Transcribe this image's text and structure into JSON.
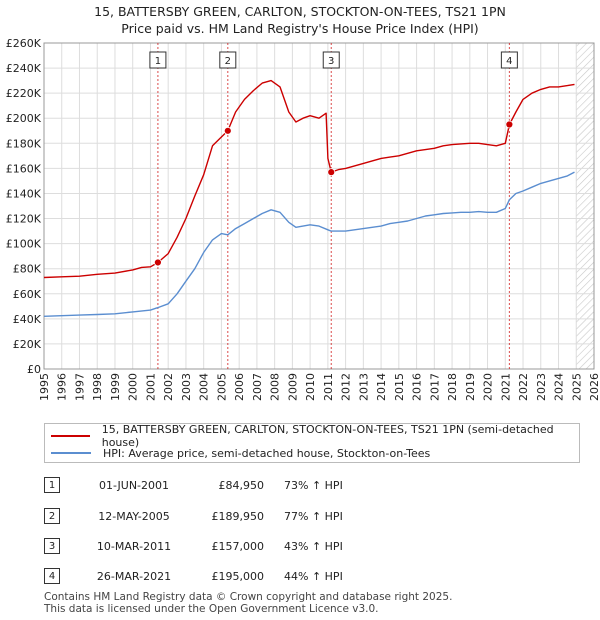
{
  "chart_data": {
    "type": "line",
    "title": "15, BATTERSBY GREEN, CARLTON, STOCKTON-ON-TEES, TS21 1PN",
    "subtitle": "Price paid vs. HM Land Registry's House Price Index (HPI)",
    "xlabel": "",
    "ylabel": "",
    "xlim": [
      1995,
      2026
    ],
    "ylim": [
      0,
      260000
    ],
    "x_ticks": [
      "1995",
      "1996",
      "1997",
      "1998",
      "1999",
      "2000",
      "2001",
      "2002",
      "2003",
      "2004",
      "2005",
      "2006",
      "2007",
      "2008",
      "2009",
      "2010",
      "2011",
      "2012",
      "2013",
      "2014",
      "2015",
      "2016",
      "2017",
      "2018",
      "2019",
      "2020",
      "2021",
      "2022",
      "2023",
      "2024",
      "2025",
      "2026"
    ],
    "y_ticks": [
      {
        "value": 0,
        "label": "£0"
      },
      {
        "value": 20000,
        "label": "£20K"
      },
      {
        "value": 40000,
        "label": "£40K"
      },
      {
        "value": 60000,
        "label": "£60K"
      },
      {
        "value": 80000,
        "label": "£80K"
      },
      {
        "value": 100000,
        "label": "£100K"
      },
      {
        "value": 120000,
        "label": "£120K"
      },
      {
        "value": 140000,
        "label": "£140K"
      },
      {
        "value": 160000,
        "label": "£160K"
      },
      {
        "value": 180000,
        "label": "£180K"
      },
      {
        "value": 200000,
        "label": "£200K"
      },
      {
        "value": 220000,
        "label": "£220K"
      },
      {
        "value": 240000,
        "label": "£240K"
      },
      {
        "value": 260000,
        "label": "£260K"
      }
    ],
    "forecast_start": 2025.0,
    "series": [
      {
        "name": "15, BATTERSBY GREEN, CARLTON, STOCKTON-ON-TEES, TS21 1PN (semi-detached house)",
        "color": "#cc0000",
        "x": [
          1995.0,
          1996.0,
          1997.0,
          1998.0,
          1999.0,
          2000.0,
          2000.5,
          2001.0,
          2001.42,
          2002.0,
          2002.5,
          2003.0,
          2003.5,
          2004.0,
          2004.5,
          2005.0,
          2005.36,
          2005.8,
          2006.3,
          2006.8,
          2007.3,
          2007.8,
          2008.3,
          2008.8,
          2009.2,
          2009.6,
          2010.0,
          2010.5,
          2010.9,
          2011.0,
          2011.19,
          2011.6,
          2012.0,
          2012.5,
          2013.0,
          2013.5,
          2014.0,
          2014.5,
          2015.0,
          2015.5,
          2016.0,
          2016.5,
          2017.0,
          2017.5,
          2018.0,
          2018.5,
          2019.0,
          2019.5,
          2020.0,
          2020.5,
          2021.0,
          2021.23,
          2021.6,
          2022.0,
          2022.5,
          2023.0,
          2023.5,
          2024.0,
          2024.5,
          2024.9
        ],
        "y": [
          73000,
          73500,
          74000,
          75500,
          76500,
          79000,
          81000,
          81500,
          84950,
          92000,
          105000,
          120000,
          138000,
          155000,
          178000,
          185000,
          189950,
          205000,
          215000,
          222000,
          228000,
          230000,
          225000,
          205000,
          197000,
          200000,
          202000,
          200000,
          204000,
          168000,
          157000,
          159000,
          160000,
          162000,
          164000,
          166000,
          168000,
          169000,
          170000,
          172000,
          174000,
          175000,
          176000,
          178000,
          179000,
          179500,
          180000,
          180000,
          179000,
          178000,
          180000,
          195000,
          205000,
          215000,
          220000,
          223000,
          225000,
          225000,
          226000,
          227000
        ]
      },
      {
        "name": "HPI: Average price, semi-detached house, Stockton-on-Tees",
        "color": "#5b8ed0",
        "x": [
          1995.0,
          1996.0,
          1997.0,
          1998.0,
          1999.0,
          2000.0,
          2001.0,
          2001.42,
          2002.0,
          2002.5,
          2003.0,
          2003.5,
          2004.0,
          2004.5,
          2005.0,
          2005.36,
          2005.8,
          2006.3,
          2006.8,
          2007.3,
          2007.8,
          2008.3,
          2008.8,
          2009.2,
          2009.6,
          2010.0,
          2010.5,
          2011.0,
          2011.19,
          2011.6,
          2012.0,
          2012.5,
          2013.0,
          2013.5,
          2014.0,
          2014.5,
          2015.0,
          2015.5,
          2016.0,
          2016.5,
          2017.0,
          2017.5,
          2018.0,
          2018.5,
          2019.0,
          2019.5,
          2020.0,
          2020.5,
          2021.0,
          2021.23,
          2021.6,
          2022.0,
          2022.5,
          2023.0,
          2023.5,
          2024.0,
          2024.5,
          2024.9
        ],
        "y": [
          42000,
          42500,
          43000,
          43500,
          44000,
          45500,
          47000,
          49000,
          52000,
          60000,
          70000,
          80000,
          93000,
          103000,
          108000,
          107000,
          112000,
          116000,
          120000,
          124000,
          127000,
          125000,
          117000,
          113000,
          114000,
          115000,
          114000,
          111000,
          110000,
          110000,
          110000,
          111000,
          112000,
          113000,
          114000,
          116000,
          117000,
          118000,
          120000,
          122000,
          123000,
          124000,
          124500,
          125000,
          125000,
          125500,
          125000,
          125000,
          128000,
          135000,
          140000,
          142000,
          145000,
          148000,
          150000,
          152000,
          154000,
          157000
        ]
      }
    ],
    "sale_markers": [
      {
        "num": "1",
        "x": 2001.42,
        "price": 84950
      },
      {
        "num": "2",
        "x": 2005.36,
        "price": 189950
      },
      {
        "num": "3",
        "x": 2011.19,
        "price": 157000
      },
      {
        "num": "4",
        "x": 2021.23,
        "price": 195000
      }
    ]
  },
  "legend": {
    "property": "15, BATTERSBY GREEN, CARLTON, STOCKTON-ON-TEES, TS21 1PN (semi-detached house)",
    "hpi": "HPI: Average price, semi-detached house, Stockton-on-Tees"
  },
  "sales": [
    {
      "num": "1",
      "date": "01-JUN-2001",
      "price": "£84,950",
      "hpi": "73% ↑ HPI"
    },
    {
      "num": "2",
      "date": "12-MAY-2005",
      "price": "£189,950",
      "hpi": "77% ↑ HPI"
    },
    {
      "num": "3",
      "date": "10-MAR-2011",
      "price": "£157,000",
      "hpi": "43% ↑ HPI"
    },
    {
      "num": "4",
      "date": "26-MAR-2021",
      "price": "£195,000",
      "hpi": "44% ↑ HPI"
    }
  ],
  "footer": {
    "line1": "Contains HM Land Registry data © Crown copyright and database right 2025.",
    "line2": "This data is licensed under the Open Government Licence v3.0."
  },
  "colors": {
    "property": "#cc0000",
    "hpi": "#5b8ed0",
    "grid": "#dddddd"
  }
}
